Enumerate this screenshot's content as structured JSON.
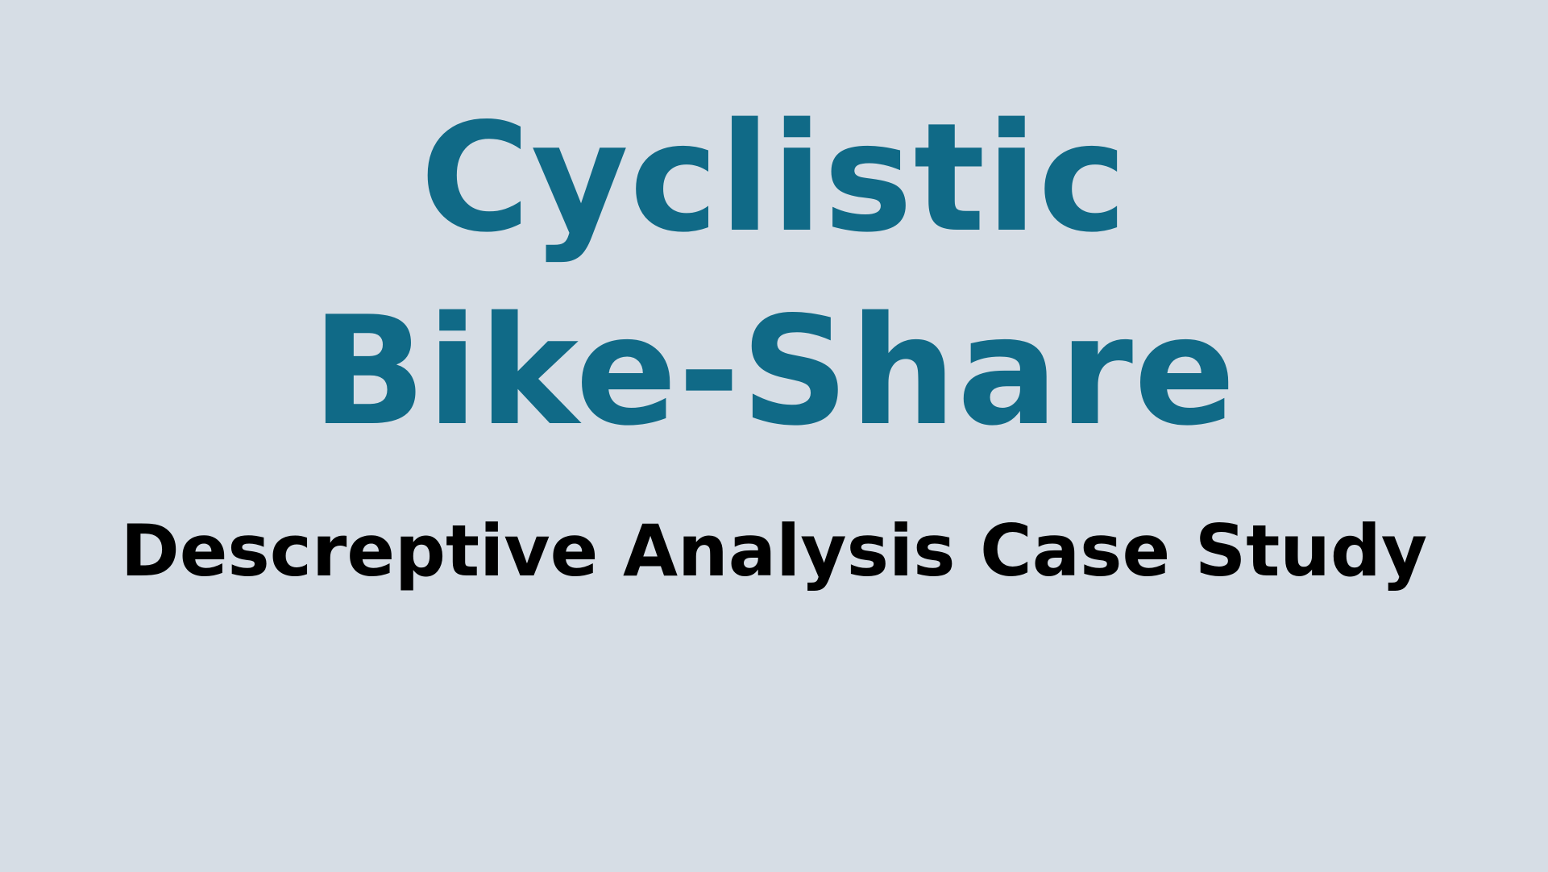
{
  "slide": {
    "title_line_1": "Cyclistic",
    "title_line_2": "Bike-Share",
    "subtitle": "Descreptive Analysis Case Study"
  },
  "colors": {
    "background": "#d6dde5",
    "title": "#106a87",
    "subtitle": "#000000"
  }
}
